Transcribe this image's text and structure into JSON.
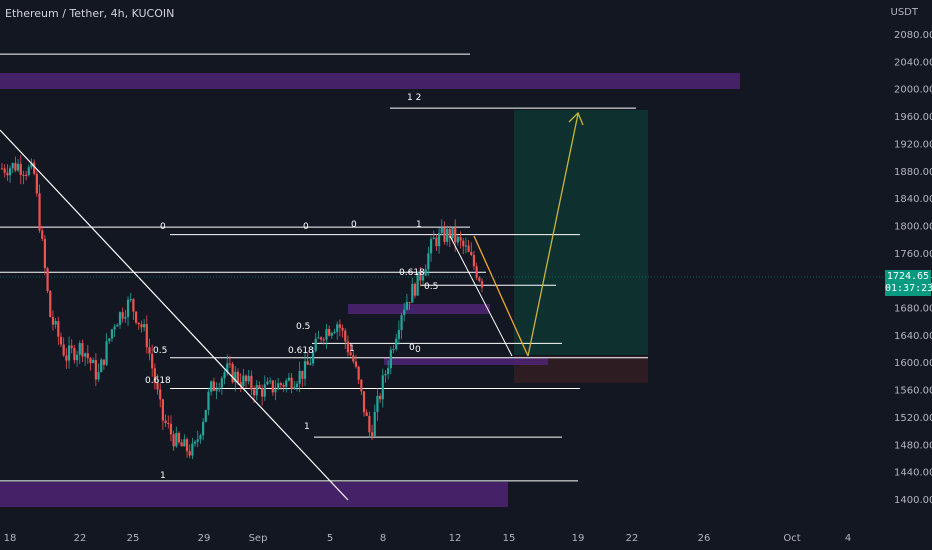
{
  "header": {
    "symbol_title": "Ethereum / Tether, 4h, KUCOIN",
    "currency": "USDT"
  },
  "price_tag": {
    "price": "1724.65",
    "countdown": "01:37:23"
  },
  "colors": {
    "background": "#131722",
    "up_candle": "#26a69a",
    "down_candle": "#ef5350",
    "zone_purple": "#5b2a86",
    "target_zone": "#0f3a36",
    "stop_zone": "#3a1f25",
    "projection_arrow_up": "#c8b43c",
    "projection_arrow_down": "#f0a830",
    "line_white": "#ffffff"
  },
  "chart_data": {
    "type": "candlestick",
    "title": "Ethereum / Tether, 4h, KUCOIN",
    "y_unit": "USDT",
    "ylim": [
      1380,
      2120
    ],
    "y_ticks": [
      "2080.00",
      "2040.00",
      "2000.00",
      "1960.00",
      "1920.00",
      "1880.00",
      "1840.00",
      "1800.00",
      "1760.00",
      "1720.00",
      "1680.00",
      "1640.00",
      "1600.00",
      "1560.00",
      "1520.00",
      "1480.00",
      "1440.00",
      "1400.00"
    ],
    "x_ticks": [
      "18",
      "22",
      "25",
      "29",
      "Sep",
      "5",
      "8",
      "12",
      "15",
      "19",
      "22",
      "26",
      "Oct",
      "4"
    ],
    "current_price": 1724.65,
    "price_path": [
      [
        "18",
        1885
      ],
      [
        "19",
        1890
      ],
      [
        "20",
        1878
      ],
      [
        "21",
        1670
      ],
      [
        "22",
        1610
      ],
      [
        "23",
        1625
      ],
      [
        "24",
        1580
      ],
      [
        "25",
        1660
      ],
      [
        "26",
        1690
      ],
      [
        "27",
        1640
      ],
      [
        "28",
        1520
      ],
      [
        "29",
        1480
      ],
      [
        "30",
        1470
      ],
      [
        "31",
        1560
      ],
      [
        "Sep",
        1590
      ],
      [
        "2",
        1575
      ],
      [
        "3",
        1560
      ],
      [
        "4",
        1565
      ],
      [
        "5",
        1575
      ],
      [
        "6",
        1590
      ],
      [
        "7",
        1645
      ],
      [
        "8",
        1660
      ],
      [
        "9",
        1600
      ],
      [
        "10",
        1495
      ],
      [
        "11",
        1590
      ],
      [
        "12",
        1680
      ],
      [
        "13",
        1720
      ],
      [
        "14",
        1780
      ],
      [
        "15",
        1790
      ],
      [
        "16",
        1765
      ],
      [
        "17",
        1720
      ]
    ],
    "zones": [
      {
        "name": "Resistance zone",
        "from": 2005,
        "to": 2015
      },
      {
        "name": "Demand zone (low)",
        "from": 1405,
        "to": 1420
      },
      {
        "name": "Demand zone (mid)",
        "from": 1669,
        "to": 1680
      },
      {
        "name": "Demand zone (entry)",
        "from": 1585,
        "to": 1595
      }
    ],
    "horizontal_levels": [
      2052,
      1973,
      1799,
      1788,
      1733,
      1714,
      1629,
      1608,
      1563,
      1492,
      1428
    ],
    "fib_labels": [
      "1  2",
      "0",
      "0",
      "0",
      "1",
      "0.618",
      "0.5",
      "0.5",
      "0.5",
      "0.618",
      "0.618",
      "1",
      "0",
      "0",
      "1",
      "1"
    ],
    "projection": {
      "entry": 1610,
      "target": 1975
    },
    "grid": false
  }
}
